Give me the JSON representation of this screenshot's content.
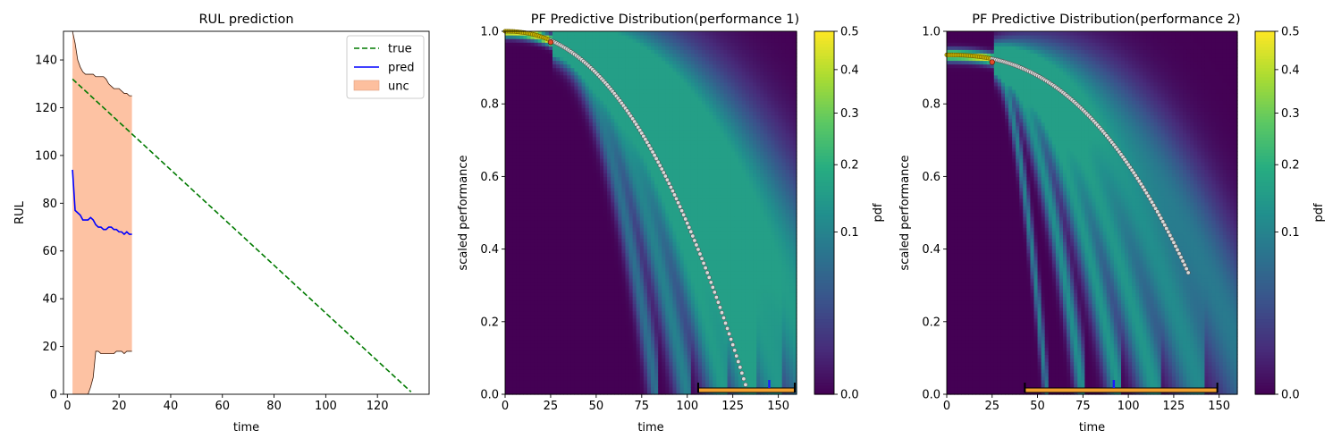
{
  "chart_data": [
    {
      "type": "line",
      "title": "RUL prediction",
      "xlabel": "time",
      "ylabel": "RUL",
      "xlim": [
        -1.5,
        140
      ],
      "ylim": [
        0,
        152
      ],
      "xticks": [
        0,
        20,
        40,
        60,
        80,
        100,
        120
      ],
      "yticks": [
        0,
        20,
        40,
        60,
        80,
        100,
        120,
        140
      ],
      "legend": {
        "placement": "top-right",
        "entries": [
          "true",
          "pred",
          "unc"
        ]
      },
      "series": [
        {
          "name": "true",
          "style": "dashed",
          "color": "#007a00",
          "x": [
            2,
            133
          ],
          "y": [
            132,
            1
          ]
        },
        {
          "name": "pred",
          "style": "solid",
          "color": "#0000ff",
          "x": [
            2,
            3,
            4,
            5,
            6,
            7,
            8,
            9,
            10,
            11,
            12,
            13,
            14,
            15,
            16,
            17,
            18,
            19,
            20,
            21,
            22,
            23,
            24,
            25
          ],
          "y": [
            94,
            77,
            76,
            75,
            73,
            73,
            73,
            74,
            73,
            71,
            70,
            70,
            69,
            69,
            70,
            70,
            69,
            69,
            68,
            68,
            67,
            68,
            67,
            67
          ]
        },
        {
          "name": "unc",
          "style": "band",
          "color": "#fdbf9e",
          "x": [
            2,
            3,
            4,
            5,
            6,
            7,
            8,
            9,
            10,
            11,
            12,
            13,
            14,
            15,
            16,
            17,
            18,
            19,
            20,
            21,
            22,
            23,
            24,
            25
          ],
          "lower": [
            0,
            0,
            0,
            0,
            0,
            0,
            0,
            3,
            7,
            18,
            18,
            17,
            17,
            17,
            17,
            17,
            17,
            18,
            18,
            18,
            17,
            18,
            18,
            18
          ],
          "upper": [
            152,
            147,
            140,
            137,
            135,
            134,
            134,
            134,
            134,
            133,
            133,
            133,
            133,
            132,
            130,
            129,
            128,
            128,
            128,
            127,
            126,
            126,
            125,
            125
          ]
        }
      ]
    },
    {
      "type": "heatmap",
      "title": "PF Predictive Distribution(performance 1)",
      "xlabel": "time",
      "ylabel": "scaled performance",
      "xlim": [
        0,
        160
      ],
      "ylim": [
        0,
        1
      ],
      "xticks": [
        0,
        25,
        50,
        75,
        100,
        125,
        150
      ],
      "yticks": [
        0.0,
        0.2,
        0.4,
        0.6,
        0.8,
        1.0
      ],
      "colorbar": {
        "label": "pdf",
        "ticks": [
          0.5,
          0.4,
          0.3,
          0.2,
          0.1,
          0.0
        ],
        "scale": "power",
        "colormap": "viridis"
      },
      "observed_trajectory": {
        "x0": 0,
        "x1": 133,
        "y_start": 1.0,
        "y_end": 0.01,
        "shape_power": 2.2
      },
      "history_end": 25,
      "current_point": {
        "x": 25,
        "y": 0.97
      },
      "true_eol": 133,
      "predicted_eol": 145,
      "eol_interval": [
        106,
        159
      ],
      "distribution_paths": [
        {
          "end_time": 83,
          "shape_power": 2.0,
          "weight": 0.5
        },
        {
          "end_time": 100,
          "shape_power": 2.0,
          "weight": 0.7
        },
        {
          "end_time": 120,
          "shape_power": 2.0,
          "weight": 1.0
        },
        {
          "end_time": 135,
          "shape_power": 2.1,
          "weight": 1.0
        },
        {
          "end_time": 150,
          "shape_power": 2.2,
          "weight": 0.9
        },
        {
          "end_time": 170,
          "shape_power": 2.3,
          "weight": 0.8
        },
        {
          "end_time": 190,
          "shape_power": 2.3,
          "weight": 0.6
        }
      ]
    },
    {
      "type": "heatmap",
      "title": "PF Predictive Distribution(performance 2)",
      "xlabel": "time",
      "ylabel": "scaled performance",
      "xlim": [
        0,
        160
      ],
      "ylim": [
        0,
        1
      ],
      "xticks": [
        0,
        25,
        50,
        75,
        100,
        125,
        150
      ],
      "yticks": [
        0.0,
        0.2,
        0.4,
        0.6,
        0.8,
        1.0
      ],
      "colorbar": {
        "label": "pdf",
        "ticks": [
          0.5,
          0.4,
          0.3,
          0.2,
          0.1,
          0.0
        ],
        "scale": "power",
        "colormap": "viridis"
      },
      "observed_trajectory": {
        "x0": 0,
        "x1": 133,
        "y_start": 0.935,
        "y_end": 0.335,
        "shape_power": 2.4
      },
      "history_end": 25,
      "current_point": {
        "x": 25,
        "y": 0.915
      },
      "true_eol": 133,
      "predicted_eol": 92,
      "eol_interval": [
        43,
        149
      ],
      "distribution_paths": [
        {
          "end_time": 55,
          "shape_power": 1.8,
          "weight": 0.7
        },
        {
          "end_time": 75,
          "shape_power": 1.9,
          "weight": 0.9
        },
        {
          "end_time": 95,
          "shape_power": 2.0,
          "weight": 1.0
        },
        {
          "end_time": 115,
          "shape_power": 2.0,
          "weight": 1.0
        },
        {
          "end_time": 140,
          "shape_power": 2.1,
          "weight": 0.8
        },
        {
          "end_time": 170,
          "shape_power": 2.2,
          "weight": 0.6
        }
      ]
    }
  ]
}
